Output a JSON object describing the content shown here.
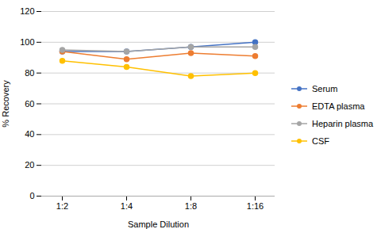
{
  "chart_data": {
    "type": "line",
    "categories": [
      "1:2",
      "1:4",
      "1:8",
      "1:16"
    ],
    "series": [
      {
        "name": "Serum",
        "color": "#4472C4",
        "marker": "circle",
        "values": [
          94,
          94,
          97,
          100
        ]
      },
      {
        "name": "EDTA plasma",
        "color": "#ED7D31",
        "marker": "circle",
        "values": [
          94,
          89,
          93,
          91
        ]
      },
      {
        "name": "Heparin plasma",
        "color": "#A5A5A5",
        "marker": "circle",
        "values": [
          95,
          94,
          97,
          97
        ]
      },
      {
        "name": "CSF",
        "color": "#FFC000",
        "marker": "circle",
        "values": [
          88,
          84,
          78,
          80
        ]
      }
    ],
    "xlabel": "Sample Dilution",
    "ylabel": "% Recovery",
    "ylim": [
      0,
      120
    ],
    "yticks": [
      0,
      20,
      40,
      60,
      80,
      100,
      120
    ],
    "grid": true,
    "legend": "right"
  }
}
